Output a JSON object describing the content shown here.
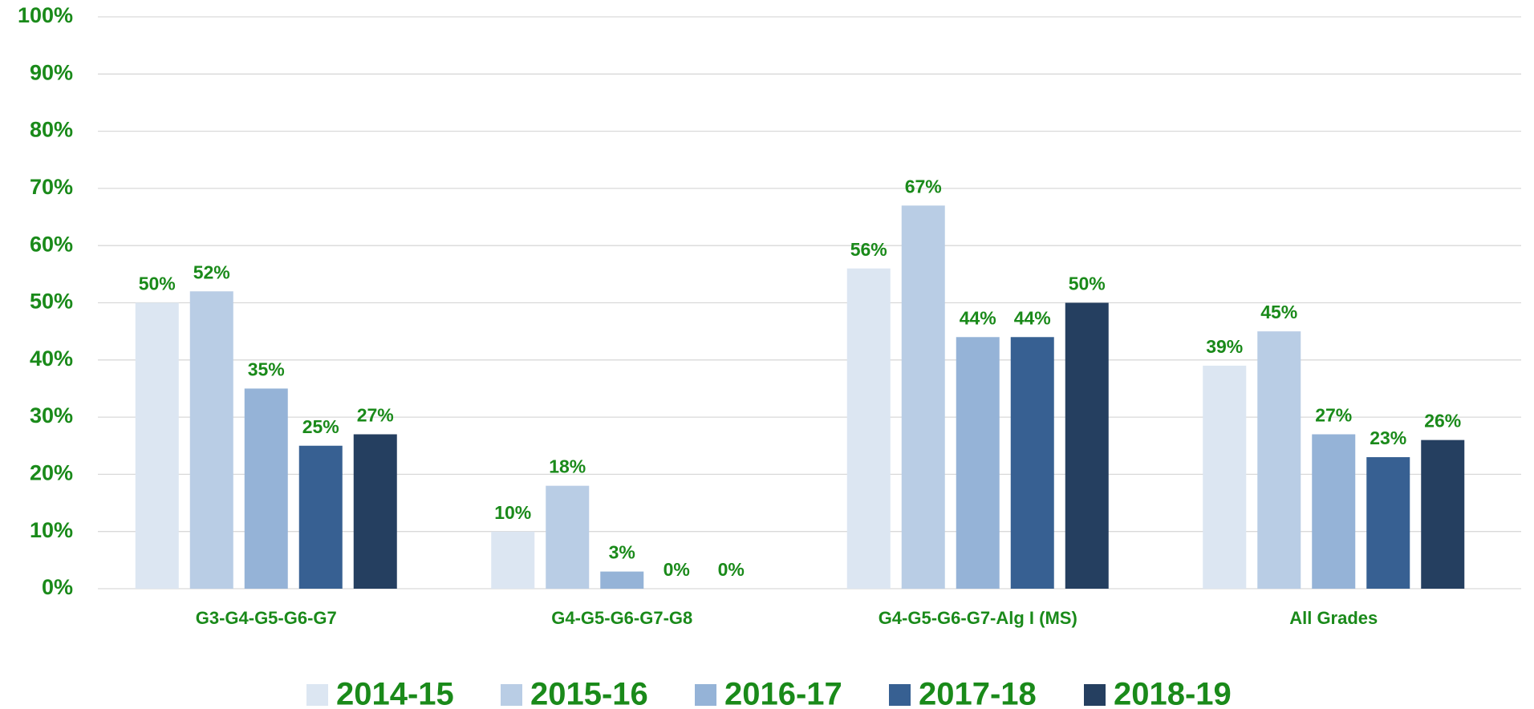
{
  "chart_data": {
    "type": "bar",
    "categories": [
      "G3-G4-G5-G6-G7",
      "G4-G5-G6-G7-G8",
      "G4-G5-G6-G7-Alg I (MS)",
      "All Grades"
    ],
    "series": [
      {
        "name": "2014-15",
        "color": "#dce6f2",
        "values": [
          50,
          10,
          56,
          39
        ],
        "value_labels": [
          "50%",
          "10%",
          "56%",
          "39%"
        ]
      },
      {
        "name": "2015-16",
        "color": "#b9cde5",
        "values": [
          52,
          18,
          67,
          45
        ],
        "value_labels": [
          "52%",
          "18%",
          "67%",
          "45%"
        ]
      },
      {
        "name": "2016-17",
        "color": "#95b3d7",
        "values": [
          35,
          3,
          44,
          27
        ],
        "value_labels": [
          "35%",
          "3%",
          "44%",
          "27%"
        ]
      },
      {
        "name": "2017-18",
        "color": "#376092",
        "values": [
          25,
          0,
          44,
          23
        ],
        "value_labels": [
          "25%",
          "0%",
          "44%",
          "23%"
        ]
      },
      {
        "name": "2018-19",
        "color": "#253f60",
        "values": [
          27,
          0,
          50,
          26
        ],
        "value_labels": [
          "27%",
          "0%",
          "50%",
          "26%"
        ]
      }
    ],
    "ylim": [
      0,
      100
    ],
    "yticks": [
      {
        "value": 0,
        "label": "0%"
      },
      {
        "value": 10,
        "label": "10%"
      },
      {
        "value": 20,
        "label": "20%"
      },
      {
        "value": 30,
        "label": "30%"
      },
      {
        "value": 40,
        "label": "40%"
      },
      {
        "value": 50,
        "label": "50%"
      },
      {
        "value": 60,
        "label": "60%"
      },
      {
        "value": 70,
        "label": "70%"
      },
      {
        "value": 80,
        "label": "80%"
      },
      {
        "value": 90,
        "label": "90%"
      },
      {
        "value": 100,
        "label": "100%"
      }
    ],
    "grid": true,
    "legend": "bottom"
  }
}
